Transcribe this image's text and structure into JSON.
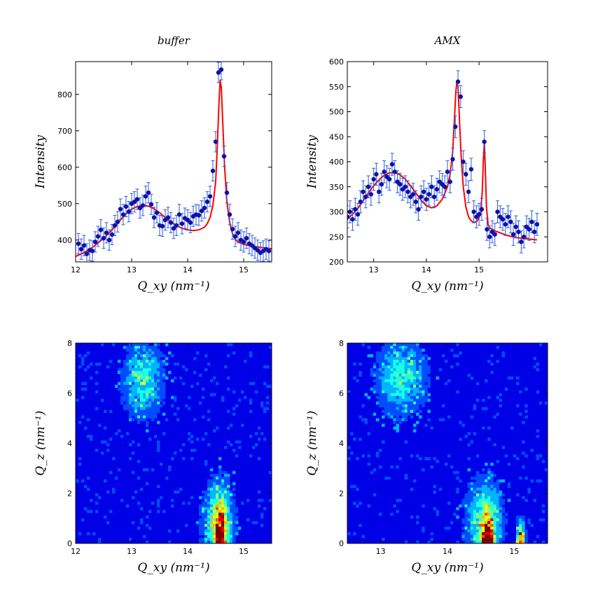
{
  "chart_data": [
    {
      "type": "scatter",
      "title": "buffer",
      "xlabel": "Q_xy (nm⁻¹)",
      "ylabel": "Intensity",
      "xlim": [
        12,
        15.5
      ],
      "ylim": [
        340,
        890
      ],
      "xticks": [
        "12",
        "13",
        "14",
        "15"
      ],
      "yticks": [
        "400",
        "500",
        "600",
        "700",
        "800"
      ],
      "series": [
        {
          "kind": "points_with_errorbars",
          "color": "#1010a8",
          "error": 28,
          "x": [
            12.05,
            12.1,
            12.15,
            12.2,
            12.25,
            12.3,
            12.35,
            12.4,
            12.45,
            12.5,
            12.55,
            12.6,
            12.65,
            12.7,
            12.75,
            12.8,
            12.85,
            12.9,
            12.95,
            13.0,
            13.05,
            13.1,
            13.15,
            13.2,
            13.25,
            13.3,
            13.35,
            13.4,
            13.45,
            13.5,
            13.55,
            13.6,
            13.65,
            13.7,
            13.75,
            13.8,
            13.85,
            13.9,
            13.95,
            14.0,
            14.05,
            14.1,
            14.15,
            14.2,
            14.25,
            14.3,
            14.35,
            14.4,
            14.45,
            14.5,
            14.55,
            14.6,
            14.65,
            14.7,
            14.75,
            14.8,
            14.85,
            14.9,
            14.95,
            15.0,
            15.05,
            15.1,
            15.15,
            15.2,
            15.25,
            15.3,
            15.35,
            15.4,
            15.45
          ],
          "y": [
            390,
            375,
            385,
            362,
            372,
            370,
            395,
            410,
            428,
            405,
            420,
            400,
            415,
            440,
            450,
            485,
            470,
            492,
            478,
            500,
            505,
            512,
            488,
            495,
            520,
            530,
            498,
            462,
            475,
            440,
            438,
            455,
            462,
            448,
            432,
            440,
            470,
            445,
            460,
            455,
            448,
            465,
            470,
            468,
            480,
            488,
            505,
            520,
            590,
            670,
            860,
            868,
            630,
            530,
            470,
            430,
            410,
            420,
            400,
            395,
            405,
            390,
            385,
            378,
            372,
            365,
            370,
            375,
            370
          ]
        },
        {
          "kind": "fit_line",
          "color": "#ff0000",
          "x": [
            12.0,
            12.1,
            12.2,
            12.3,
            12.4,
            12.5,
            12.6,
            12.7,
            12.8,
            12.9,
            13.0,
            13.1,
            13.2,
            13.3,
            13.4,
            13.5,
            13.6,
            13.7,
            13.8,
            13.9,
            14.0,
            14.1,
            14.2,
            14.3,
            14.35,
            14.4,
            14.45,
            14.5,
            14.53,
            14.56,
            14.58,
            14.6,
            14.63,
            14.66,
            14.7,
            14.75,
            14.8,
            14.85,
            14.9,
            15.0,
            15.1,
            15.2,
            15.3,
            15.4,
            15.5
          ],
          "y": [
            355,
            362,
            370,
            380,
            392,
            405,
            420,
            437,
            455,
            472,
            485,
            492,
            495,
            493,
            486,
            475,
            462,
            450,
            440,
            432,
            428,
            426,
            428,
            435,
            445,
            462,
            495,
            560,
            660,
            780,
            840,
            820,
            710,
            600,
            505,
            448,
            418,
            402,
            395,
            388,
            385,
            382,
            380,
            378,
            376
          ]
        }
      ]
    },
    {
      "type": "scatter",
      "title": "AMX",
      "xlabel": "Q_xy (nm⁻¹)",
      "ylabel": "Intensity",
      "xlim": [
        12.5,
        16.3
      ],
      "ylim": [
        200,
        600
      ],
      "xticks": [
        "13",
        "14",
        "15"
      ],
      "yticks": [
        "200",
        "250",
        "300",
        "350",
        "400",
        "450",
        "500",
        "550",
        "600"
      ],
      "series": [
        {
          "kind": "points_with_errorbars",
          "color": "#1010a8",
          "error": 22,
          "x": [
            12.5,
            12.55,
            12.6,
            12.65,
            12.7,
            12.75,
            12.8,
            12.85,
            12.9,
            12.95,
            13.0,
            13.05,
            13.1,
            13.15,
            13.2,
            13.25,
            13.3,
            13.35,
            13.4,
            13.45,
            13.5,
            13.55,
            13.6,
            13.65,
            13.7,
            13.75,
            13.8,
            13.85,
            13.9,
            13.95,
            14.0,
            14.05,
            14.1,
            14.15,
            14.2,
            14.25,
            14.3,
            14.35,
            14.4,
            14.45,
            14.5,
            14.55,
            14.6,
            14.65,
            14.7,
            14.75,
            14.8,
            14.85,
            14.9,
            14.95,
            15.0,
            15.05,
            15.1,
            15.15,
            15.2,
            15.25,
            15.3,
            15.35,
            15.4,
            15.45,
            15.5,
            15.55,
            15.6,
            15.65,
            15.7,
            15.75,
            15.8,
            15.85,
            15.9,
            15.95,
            16.0,
            16.05,
            16.1
          ],
          "y": [
            290,
            300,
            285,
            305,
            295,
            320,
            340,
            330,
            350,
            335,
            365,
            375,
            340,
            355,
            380,
            370,
            365,
            395,
            380,
            360,
            355,
            345,
            350,
            340,
            330,
            335,
            320,
            305,
            330,
            340,
            325,
            335,
            350,
            330,
            345,
            360,
            355,
            350,
            380,
            360,
            405,
            470,
            560,
            530,
            400,
            375,
            340,
            385,
            300,
            290,
            295,
            305,
            440,
            265,
            250,
            260,
            255,
            300,
            290,
            285,
            275,
            290,
            280,
            255,
            270,
            260,
            240,
            250,
            270,
            265,
            280,
            260,
            275
          ]
        },
        {
          "kind": "fit_line",
          "color": "#ff0000",
          "x": [
            12.5,
            12.6,
            12.7,
            12.8,
            12.9,
            13.0,
            13.1,
            13.2,
            13.3,
            13.4,
            13.5,
            13.6,
            13.7,
            13.8,
            13.9,
            14.0,
            14.1,
            14.2,
            14.3,
            14.4,
            14.45,
            14.5,
            14.53,
            14.56,
            14.58,
            14.6,
            14.63,
            14.66,
            14.7,
            14.75,
            14.8,
            14.85,
            14.9,
            14.95,
            15.0,
            15.03,
            15.06,
            15.08,
            15.1,
            15.12,
            15.14,
            15.17,
            15.2,
            15.3,
            15.4,
            15.5,
            15.6,
            15.7,
            15.8,
            15.9,
            16.0,
            16.1
          ],
          "y": [
            285,
            295,
            307,
            322,
            338,
            352,
            364,
            373,
            378,
            378,
            374,
            365,
            352,
            338,
            323,
            312,
            308,
            312,
            325,
            350,
            375,
            420,
            480,
            540,
            560,
            550,
            480,
            410,
            350,
            310,
            290,
            282,
            279,
            280,
            288,
            300,
            340,
            400,
            440,
            380,
            310,
            275,
            268,
            262,
            258,
            254,
            251,
            249,
            247,
            246,
            245,
            244
          ]
        }
      ]
    },
    {
      "type": "heatmap",
      "xlabel": "Q_xy (nm⁻¹)",
      "ylabel": "Q_z (nm⁻¹)",
      "xlim": [
        12,
        15.5
      ],
      "ylim": [
        0,
        8
      ],
      "xticks": [
        "12",
        "13",
        "14",
        "15"
      ],
      "yticks": [
        "0",
        "2",
        "4",
        "6",
        "8"
      ],
      "colormap": "jet",
      "blobs": [
        {
          "x": 13.2,
          "y": 6.5,
          "sx": 0.25,
          "sy": 1.0,
          "a": 0.35
        },
        {
          "x": 14.55,
          "y": 0.9,
          "sx": 0.18,
          "sy": 1.1,
          "a": 0.45
        },
        {
          "x": 14.58,
          "y": 0.15,
          "sx": 0.05,
          "sy": 0.25,
          "a": 1.0
        },
        {
          "x": 14.58,
          "y": 0.7,
          "sx": 0.07,
          "sy": 0.6,
          "a": 0.6
        }
      ]
    },
    {
      "type": "heatmap",
      "xlabel": "Q_xy (nm⁻¹)",
      "ylabel": "Q_z (nm⁻¹)",
      "xlim": [
        12.5,
        15.5
      ],
      "ylim": [
        0,
        8
      ],
      "xticks": [
        "13",
        "14",
        "15"
      ],
      "yticks": [
        "0",
        "2",
        "4",
        "6",
        "8"
      ],
      "colormap": "jet",
      "blobs": [
        {
          "x": 13.3,
          "y": 6.6,
          "sx": 0.25,
          "sy": 1.0,
          "a": 0.35
        },
        {
          "x": 14.55,
          "y": 0.9,
          "sx": 0.18,
          "sy": 1.1,
          "a": 0.42
        },
        {
          "x": 14.6,
          "y": 0.1,
          "sx": 0.06,
          "sy": 0.22,
          "a": 0.95
        },
        {
          "x": 14.6,
          "y": 0.6,
          "sx": 0.06,
          "sy": 0.5,
          "a": 0.55
        },
        {
          "x": 15.1,
          "y": 0.1,
          "sx": 0.04,
          "sy": 0.25,
          "a": 0.8
        },
        {
          "x": 15.1,
          "y": 0.5,
          "sx": 0.04,
          "sy": 0.4,
          "a": 0.35
        }
      ]
    }
  ]
}
